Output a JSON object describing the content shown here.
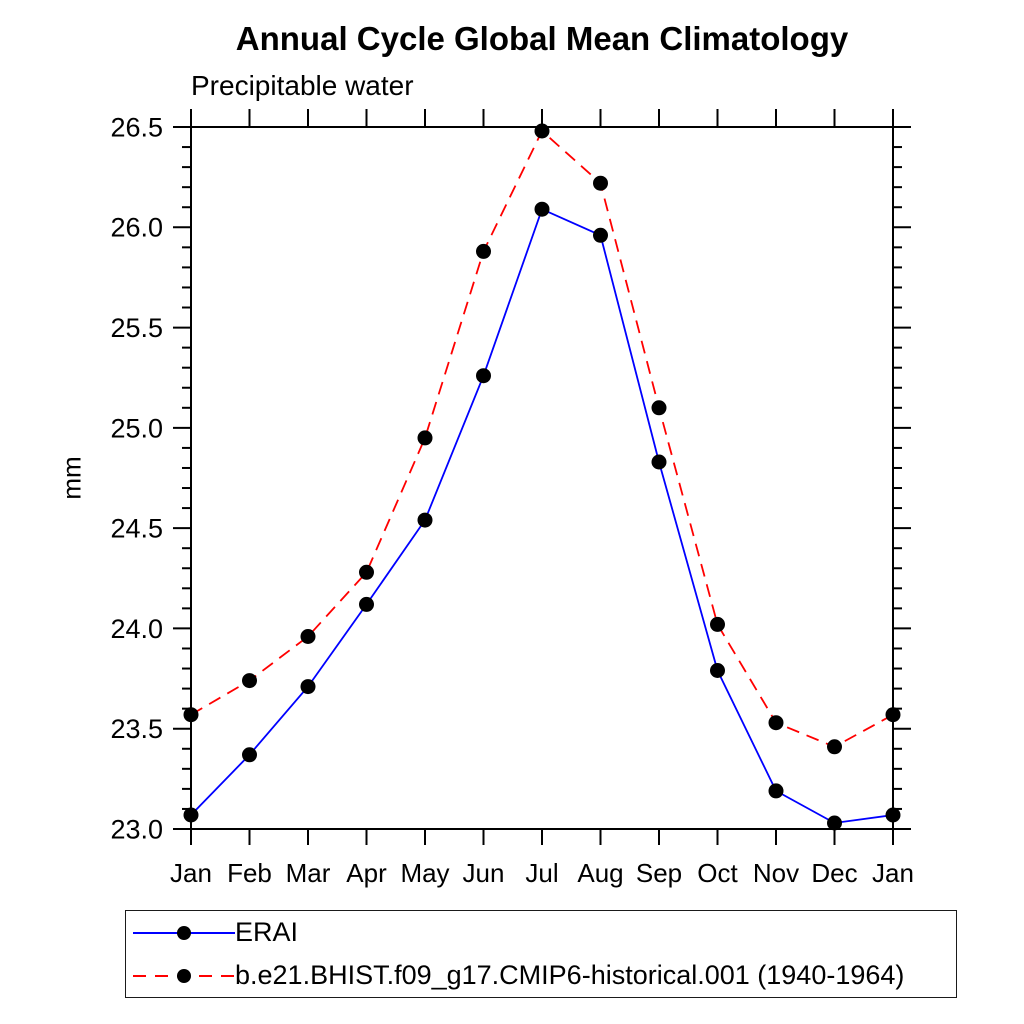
{
  "chart_data": {
    "type": "line",
    "title": "Annual Cycle Global Mean Climatology",
    "subtitle": "Precipitable water",
    "ylabel": "mm",
    "xlabel": "",
    "categories": [
      "Jan",
      "Feb",
      "Mar",
      "Apr",
      "May",
      "Jun",
      "Jul",
      "Aug",
      "Sep",
      "Oct",
      "Nov",
      "Dec",
      "Jan"
    ],
    "ylim": [
      23.0,
      26.5
    ],
    "ytick_labels": [
      "23.0",
      "23.5",
      "24.0",
      "24.5",
      "25.0",
      "25.5",
      "26.0",
      "26.5"
    ],
    "ytick_step": 0.5,
    "yminor_step": 0.1,
    "grid": false,
    "legend_position": "bottom-left-box",
    "axis_color": "#000000",
    "series": [
      {
        "name": "ERAI",
        "color": "#0000ff",
        "line_style": "solid",
        "marker": "circle",
        "marker_color": "#000000",
        "values": [
          23.07,
          23.37,
          23.71,
          24.12,
          24.54,
          25.26,
          26.09,
          25.96,
          24.83,
          23.79,
          23.19,
          23.03,
          23.07
        ]
      },
      {
        "name": "b.e21.BHIST.f09_g17.CMIP6-historical.001 (1940-1964)",
        "color": "#ff0000",
        "line_style": "dashed",
        "marker": "circle",
        "marker_color": "#000000",
        "values": [
          23.57,
          23.74,
          23.96,
          24.28,
          24.95,
          25.88,
          26.48,
          26.22,
          25.1,
          24.02,
          23.53,
          23.41,
          23.57
        ]
      }
    ]
  }
}
